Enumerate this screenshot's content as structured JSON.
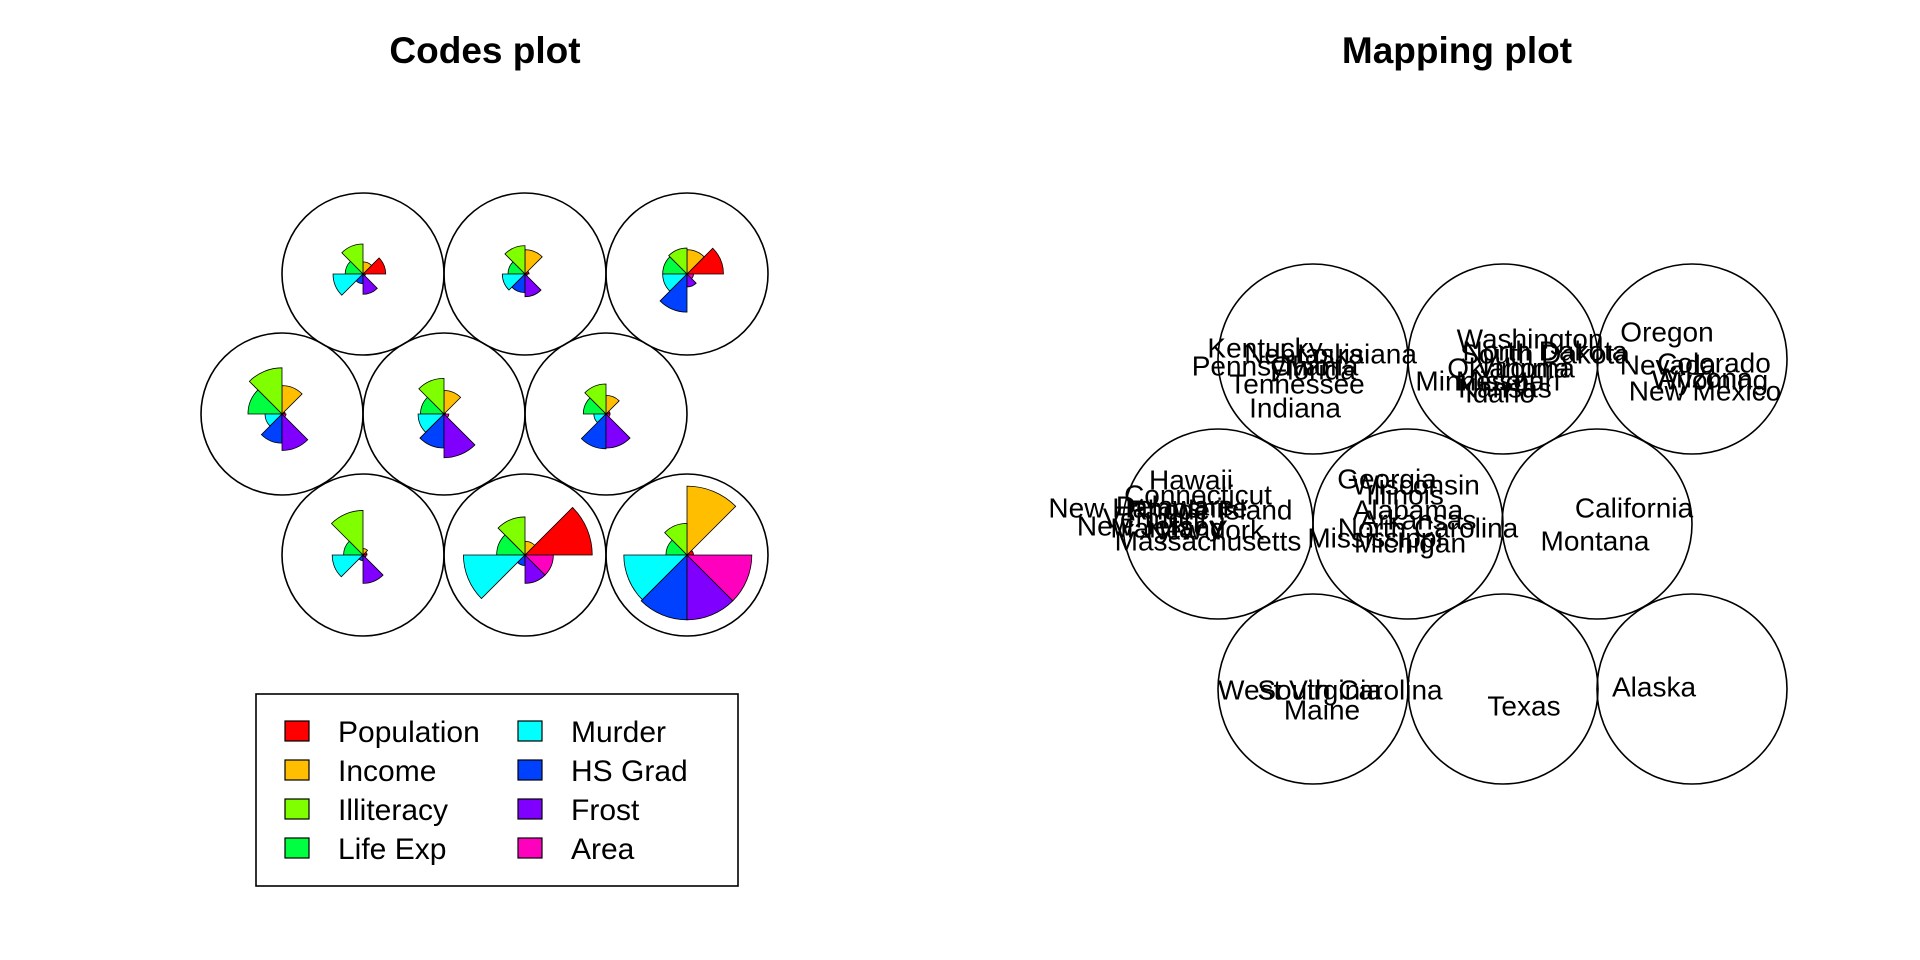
{
  "chart_data": [
    {
      "type": "segments",
      "title": "Codes plot",
      "grid": "hexagonal 3x3",
      "legend_placement": "bottom",
      "variables": [
        "Population",
        "Income",
        "Illiteracy",
        "Life Exp",
        "Murder",
        "HS Grad",
        "Frost",
        "Area"
      ],
      "colors": [
        "#FF0000",
        "#FFBF00",
        "#80FF00",
        "#00FF40",
        "#00FFFF",
        "#0040FF",
        "#8000FF",
        "#FF00BF"
      ],
      "units": [
        {
          "unit": 1,
          "values": [
            0.28,
            0.15,
            0.37,
            0.22,
            0.37,
            0.12,
            0.25,
            0.03
          ]
        },
        {
          "unit": 2,
          "values": [
            0.05,
            0.3,
            0.35,
            0.21,
            0.28,
            0.23,
            0.28,
            0.03
          ]
        },
        {
          "unit": 3,
          "values": [
            0.45,
            0.3,
            0.32,
            0.3,
            0.3,
            0.47,
            0.16,
            0.08
          ]
        },
        {
          "unit": 4,
          "values": [
            0.04,
            0.35,
            0.57,
            0.42,
            0.21,
            0.36,
            0.45,
            0.05
          ]
        },
        {
          "unit": 5,
          "values": [
            0.02,
            0.29,
            0.44,
            0.29,
            0.32,
            0.42,
            0.54,
            0.06
          ]
        },
        {
          "unit": 6,
          "values": [
            0.05,
            0.23,
            0.37,
            0.28,
            0.15,
            0.43,
            0.42,
            0.05
          ]
        },
        {
          "unit": 7,
          "values": [
            0.05,
            0.08,
            0.55,
            0.24,
            0.38,
            0.07,
            0.35,
            0.04
          ]
        },
        {
          "unit": 8,
          "values": [
            0.83,
            0.17,
            0.47,
            0.35,
            0.76,
            0.13,
            0.35,
            0.35
          ]
        },
        {
          "unit": 9,
          "values": [
            0.08,
            0.85,
            0.39,
            0.26,
            0.78,
            0.8,
            0.8,
            0.8
          ]
        }
      ]
    },
    {
      "type": "mapping",
      "title": "Mapping plot",
      "grid": "hexagonal 3x3",
      "units": [
        {
          "unit": 1,
          "labels": [
            "Kentucky",
            "Nebraska",
            "Louisiana",
            "Pennsylvania",
            "Ohio",
            "Florida",
            "Tennessee",
            "Indiana"
          ]
        },
        {
          "unit": 2,
          "labels": [
            "Washington",
            "North Dakota",
            "South Dakota",
            "Oklahoma",
            "Virginia",
            "Minnesota",
            "Missouri",
            "Kansas",
            "Idaho"
          ]
        },
        {
          "unit": 3,
          "labels": [
            "Oregon",
            "Nevada",
            "Colorado",
            "Arizona",
            "Wyoming",
            "New Mexico"
          ]
        },
        {
          "unit": 4,
          "labels": [
            "Hawaii",
            "Connecticut",
            "Delaware",
            "New Hampshire",
            "Rhode Island",
            "Vermont",
            "New Jersey",
            "Maryland",
            "New York",
            "Massachusetts"
          ]
        },
        {
          "unit": 5,
          "labels": [
            "Georgia",
            "Wisconsin",
            "Illinois",
            "Alabama",
            "Arkansas",
            "North Carolina",
            "Mississippi",
            "Michigan"
          ]
        },
        {
          "unit": 6,
          "labels": [
            "California",
            "Montana"
          ]
        },
        {
          "unit": 7,
          "labels": [
            "West Virginia",
            "South Carolina",
            "Maine"
          ]
        },
        {
          "unit": 8,
          "labels": [
            "Texas"
          ]
        },
        {
          "unit": 9,
          "labels": [
            "Alaska"
          ]
        }
      ]
    }
  ]
}
